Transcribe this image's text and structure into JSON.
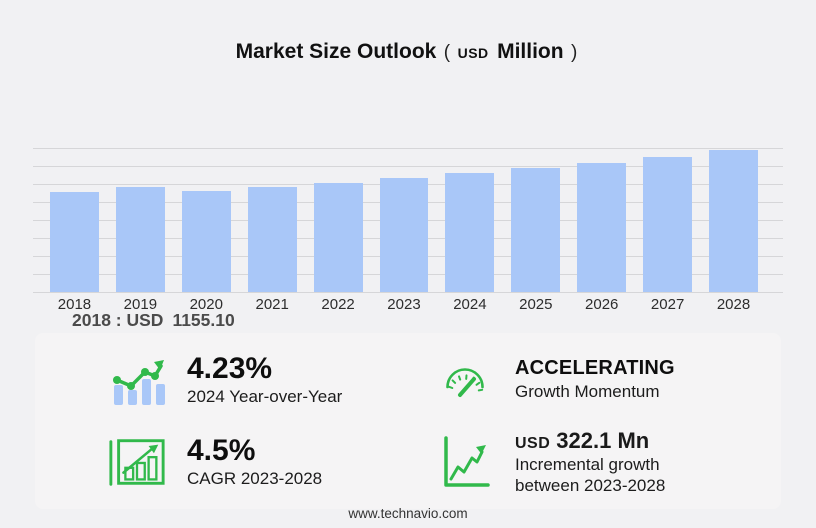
{
  "title": {
    "main": "Market Size Outlook",
    "paren_open": "(",
    "unit_currency": "USD",
    "unit_word": "Million",
    "paren_close": ")"
  },
  "chart_data": {
    "type": "bar",
    "title": "Market Size Outlook (USD Million)",
    "categories": [
      "2018",
      "2019",
      "2020",
      "2021",
      "2022",
      "2023",
      "2024",
      "2025",
      "2026",
      "2027",
      "2028"
    ],
    "values": [
      1155.1,
      1203,
      1158,
      1202,
      1255,
      1308.4,
      1363.7,
      1424,
      1487,
      1556,
      1630.5
    ],
    "xlabel": "",
    "ylabel": "USD Million",
    "ylim": [
      0,
      1655
    ],
    "grid": true,
    "gridline_count": 9,
    "legend_position": "none",
    "bar_color": "#a9c7f8",
    "annotation": {
      "prefix": "2018 : USD",
      "value": "1155.10"
    }
  },
  "stats": {
    "yoy": {
      "icon": "bar-trend-icon",
      "value": "4.23%",
      "label": "2024 Year-over-Year"
    },
    "momentum": {
      "icon": "gauge-icon",
      "value": "ACCELERATING",
      "label": "Growth Momentum"
    },
    "cagr": {
      "icon": "boxed-growth-chart-icon",
      "value": "4.5%",
      "label": "CAGR 2023-2028"
    },
    "incremental": {
      "icon": "rising-trend-axis-icon",
      "currency": "USD",
      "value": "322.1 Mn",
      "label_line1": "Incremental growth",
      "label_line2": "between 2023-2028"
    }
  },
  "footer": {
    "url": "www.technavio.com"
  },
  "colors": {
    "accent_green": "#31b94b",
    "bar_blue": "#a9c7f8",
    "grid_gray": "#d6d6d8",
    "page_bg": "#f1f1f3",
    "panel_bg": "#f5f4f5"
  }
}
